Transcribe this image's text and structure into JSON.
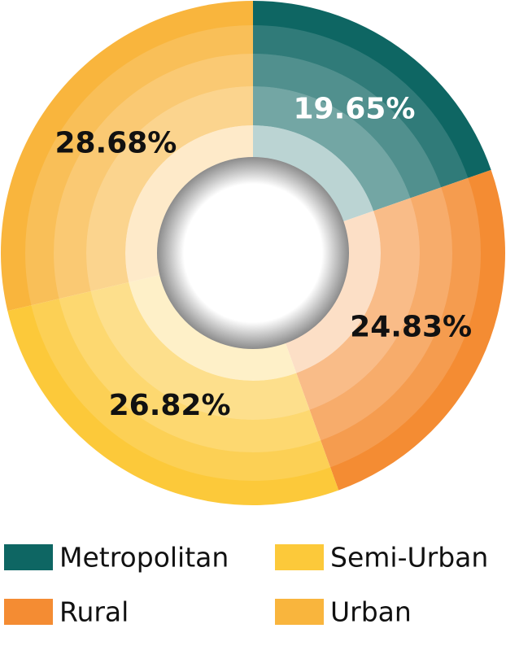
{
  "chart_data": {
    "type": "pie",
    "categories": [
      "Metropolitan",
      "Rural",
      "Semi-Urban",
      "Urban"
    ],
    "values": [
      19.65,
      24.83,
      26.82,
      28.68
    ],
    "value_labels": [
      "19.65%",
      "24.83%",
      "26.82%",
      "28.68%"
    ],
    "colors": [
      "#0e6663",
      "#f48c33",
      "#fcc93a",
      "#f9b53d"
    ],
    "legend": "bottom"
  }
}
